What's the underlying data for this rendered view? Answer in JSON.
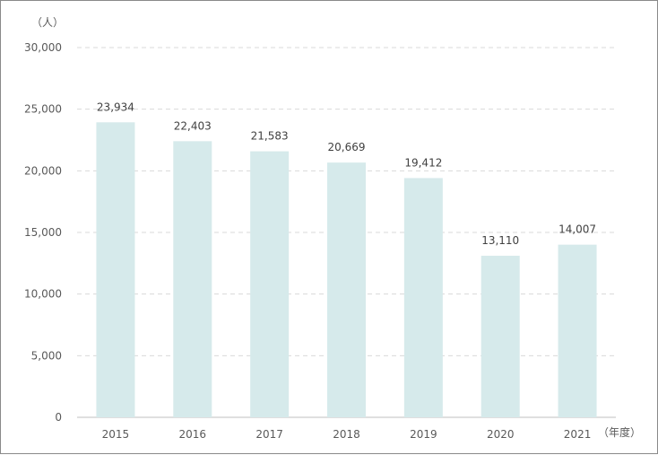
{
  "chart_data": {
    "type": "bar",
    "categories": [
      "2015",
      "2016",
      "2017",
      "2018",
      "2019",
      "2020",
      "2021"
    ],
    "values": [
      23934,
      22403,
      21583,
      20669,
      19412,
      13110,
      14007
    ],
    "value_labels": [
      "23,934",
      "22,403",
      "21,583",
      "20,669",
      "19,412",
      "13,110",
      "14,007"
    ],
    "y_unit": "（人）",
    "x_unit": "（年度）",
    "ylim": [
      0,
      30000
    ],
    "yticks": [
      0,
      5000,
      10000,
      15000,
      20000,
      25000,
      30000
    ],
    "ytick_labels": [
      "0",
      "5,000",
      "10,000",
      "15,000",
      "20,000",
      "25,000",
      "30,000"
    ],
    "grid": true,
    "grid_style": "dashed",
    "bar_color": "#d6eaeb",
    "grid_color": "#d9d9d9",
    "legend": false
  }
}
